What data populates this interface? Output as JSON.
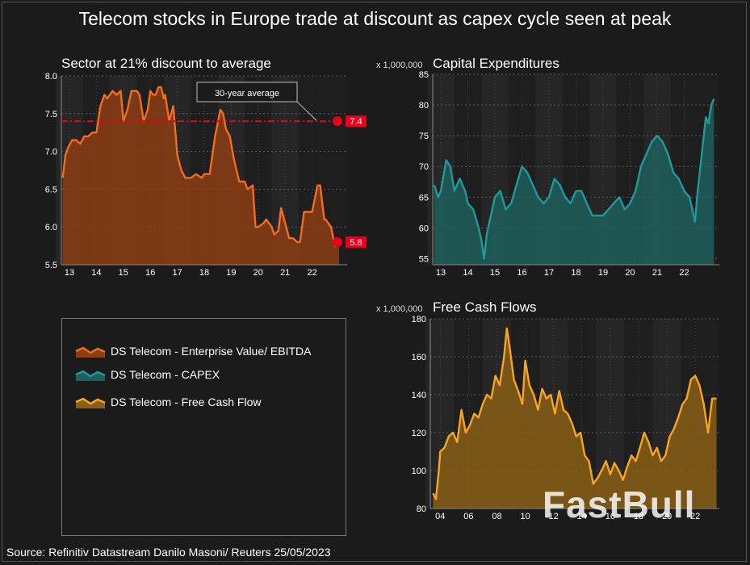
{
  "title": "Telecom stocks in Europe trade at discount as capex cycle seen at peak",
  "source": "Source: Refinitiv Datastream  Danilo Masoni/ Reuters 25/05/2023",
  "watermark": "FastBull",
  "colors": {
    "ebitda": "#f26d1f",
    "ebitda_fill": "#8b3d14",
    "capex": "#1f9a98",
    "capex_fill": "#1f5f5c",
    "fcf": "#f5a623",
    "fcf_fill": "#8a5e16",
    "avg_line": "#e8001c",
    "panel_bg_a": "#262626",
    "panel_bg_b": "#1e1e1e"
  },
  "legend": [
    {
      "label": "DS Telecom - Enterprise Value/ EBITDA",
      "color": "#f26d1f"
    },
    {
      "label": "DS Telecom - CAPEX",
      "color": "#1f9a98"
    },
    {
      "label": "DS Telecom - Free Cash Flow",
      "color": "#f5a623"
    }
  ],
  "chart_data": [
    {
      "type": "area",
      "title": "Sector at 21% discount to average",
      "ylim": [
        5.5,
        8.0
      ],
      "yticks": [
        "8.0",
        "7.5",
        "7.0",
        "6.5",
        "6.0",
        "5.5"
      ],
      "xlim": [
        2012.7,
        2023.3
      ],
      "xticks": [
        "13",
        "14",
        "15",
        "16",
        "17",
        "18",
        "19",
        "20",
        "21",
        "22"
      ],
      "annotation": "30-year average",
      "average_value": 7.4,
      "average_label": "7.4",
      "last_value": 5.8,
      "last_label": "5.8",
      "series": [
        {
          "name": "DS Telecom - Enterprise Value/ EBITDA",
          "x": [
            2012.75,
            2012.85,
            2012.95,
            2013.1,
            2013.25,
            2013.4,
            2013.55,
            2013.7,
            2013.85,
            2014.0,
            2014.15,
            2014.3,
            2014.4,
            2014.5,
            2014.6,
            2014.75,
            2014.9,
            2015.0,
            2015.15,
            2015.3,
            2015.35,
            2015.5,
            2015.6,
            2015.75,
            2015.9,
            2016.0,
            2016.1,
            2016.2,
            2016.3,
            2016.4,
            2016.5,
            2016.55,
            2016.7,
            2016.85,
            2017.0,
            2017.15,
            2017.3,
            2017.5,
            2017.7,
            2017.9,
            2018.0,
            2018.2,
            2018.4,
            2018.6,
            2018.7,
            2018.8,
            2018.95,
            2019.1,
            2019.3,
            2019.5,
            2019.6,
            2019.8,
            2019.9,
            2020.0,
            2020.2,
            2020.3,
            2020.4,
            2020.5,
            2020.6,
            2020.75,
            2020.85,
            2021.0,
            2021.15,
            2021.3,
            2021.45,
            2021.55,
            2021.7,
            2021.8,
            2022.0,
            2022.2,
            2022.3,
            2022.45,
            2022.5,
            2022.7,
            2022.85,
            2023.0
          ],
          "y": [
            6.65,
            6.95,
            7.05,
            7.15,
            7.15,
            7.1,
            7.2,
            7.2,
            7.25,
            7.25,
            7.6,
            7.75,
            7.7,
            7.75,
            7.8,
            7.75,
            7.8,
            7.4,
            7.55,
            7.8,
            7.8,
            7.8,
            7.75,
            7.4,
            7.55,
            7.8,
            7.75,
            7.75,
            7.85,
            7.85,
            7.7,
            7.75,
            7.4,
            7.6,
            6.95,
            6.75,
            6.65,
            6.65,
            6.7,
            6.65,
            6.7,
            6.7,
            7.2,
            7.55,
            7.5,
            7.3,
            7.2,
            6.9,
            6.6,
            6.6,
            6.5,
            6.55,
            6.0,
            6.0,
            6.05,
            6.1,
            6.05,
            6.0,
            5.9,
            5.95,
            6.25,
            6.05,
            5.85,
            5.85,
            5.8,
            5.8,
            6.2,
            6.2,
            6.2,
            6.55,
            6.55,
            6.1,
            6.1,
            6.0,
            5.75,
            5.8
          ]
        }
      ]
    },
    {
      "type": "area",
      "title": "Capital Expenditures",
      "multiplier": "x 1,000,000",
      "ylim": [
        54,
        85
      ],
      "yticks": [
        "85",
        "80",
        "75",
        "70",
        "65",
        "60",
        "55"
      ],
      "xlim": [
        2012.7,
        2023.3
      ],
      "xticks": [
        "13",
        "14",
        "15",
        "16",
        "17",
        "18",
        "19",
        "20",
        "21",
        "22"
      ],
      "series": [
        {
          "name": "DS Telecom - CAPEX",
          "x": [
            2012.75,
            2012.9,
            2013.0,
            2013.2,
            2013.35,
            2013.5,
            2013.7,
            2013.9,
            2014.0,
            2014.2,
            2014.4,
            2014.5,
            2014.6,
            2014.7,
            2014.85,
            2015.0,
            2015.2,
            2015.4,
            2015.6,
            2015.8,
            2016.0,
            2016.2,
            2016.4,
            2016.6,
            2016.8,
            2017.0,
            2017.2,
            2017.4,
            2017.6,
            2017.8,
            2018.0,
            2018.2,
            2018.4,
            2018.6,
            2018.8,
            2019.0,
            2019.2,
            2019.4,
            2019.6,
            2019.8,
            2020.0,
            2020.2,
            2020.4,
            2020.6,
            2020.8,
            2021.0,
            2021.2,
            2021.4,
            2021.6,
            2021.8,
            2022.0,
            2022.2,
            2022.4,
            2022.5,
            2022.6,
            2022.7,
            2022.8,
            2022.9,
            2023.0,
            2023.1
          ],
          "y": [
            67,
            65,
            66,
            71,
            70,
            66,
            68,
            66,
            64,
            63,
            60,
            58,
            55,
            59,
            62,
            65,
            66,
            63,
            64,
            67,
            70,
            69,
            67,
            65,
            64,
            65,
            68,
            67,
            65,
            64,
            66,
            66,
            64,
            62,
            62,
            62,
            63,
            64,
            65,
            63,
            64,
            66,
            70,
            72,
            74,
            75,
            74,
            72,
            69,
            68,
            66,
            65,
            61,
            66,
            70,
            74,
            78,
            77,
            80,
            81
          ]
        }
      ]
    },
    {
      "type": "area",
      "title": "Free Cash Flows",
      "multiplier": "x 1,000,000",
      "ylim": [
        80,
        180
      ],
      "yticks": [
        "180",
        "160",
        "140",
        "120",
        "100",
        "80"
      ],
      "xlim": [
        2003.3,
        2023.7
      ],
      "xticks": [
        "04",
        "06",
        "08",
        "10",
        "12",
        "14",
        "16",
        "18",
        "20",
        "22"
      ],
      "series": [
        {
          "name": "DS Telecom - Free Cash Flow",
          "x": [
            2003.5,
            2003.7,
            2003.9,
            2004.0,
            2004.3,
            2004.6,
            2004.9,
            2005.2,
            2005.5,
            2005.8,
            2006.1,
            2006.4,
            2006.7,
            2007.0,
            2007.3,
            2007.6,
            2007.9,
            2008.2,
            2008.5,
            2008.7,
            2008.9,
            2009.2,
            2009.5,
            2009.8,
            2010.0,
            2010.3,
            2010.6,
            2010.9,
            2011.2,
            2011.5,
            2011.8,
            2012.1,
            2012.4,
            2012.7,
            2013.0,
            2013.3,
            2013.6,
            2013.9,
            2014.2,
            2014.5,
            2014.8,
            2015.1,
            2015.4,
            2015.7,
            2016.0,
            2016.3,
            2016.6,
            2016.9,
            2017.2,
            2017.5,
            2017.8,
            2018.1,
            2018.4,
            2018.7,
            2019.0,
            2019.3,
            2019.6,
            2019.9,
            2020.2,
            2020.5,
            2020.8,
            2021.1,
            2021.4,
            2021.7,
            2022.0,
            2022.3,
            2022.6,
            2022.9,
            2023.2,
            2023.5
          ],
          "y": [
            88,
            85,
            100,
            110,
            112,
            118,
            120,
            115,
            132,
            120,
            124,
            130,
            128,
            135,
            140,
            138,
            150,
            145,
            160,
            175,
            165,
            148,
            142,
            135,
            158,
            145,
            140,
            132,
            143,
            138,
            140,
            130,
            142,
            132,
            130,
            125,
            118,
            120,
            108,
            105,
            93,
            96,
            100,
            105,
            98,
            104,
            100,
            95,
            102,
            108,
            105,
            112,
            120,
            115,
            108,
            112,
            105,
            108,
            118,
            122,
            128,
            135,
            138,
            148,
            150,
            145,
            135,
            120,
            138,
            138
          ]
        }
      ]
    }
  ]
}
